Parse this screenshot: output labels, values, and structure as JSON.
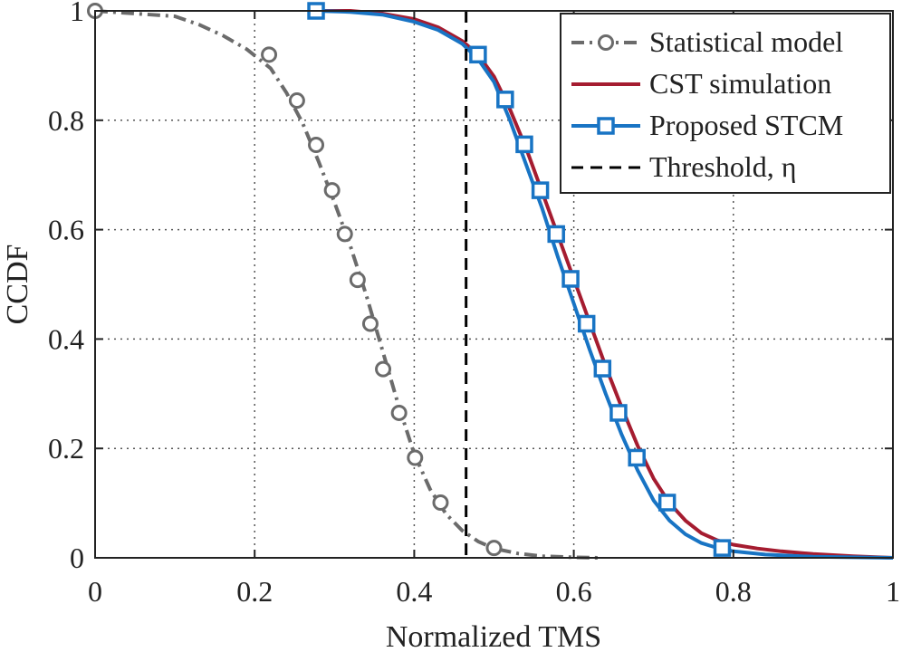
{
  "chart_data": {
    "type": "line",
    "xlabel": "Normalized TMS",
    "ylabel": "CCDF",
    "xlim": [
      0,
      1
    ],
    "ylim": [
      0,
      1
    ],
    "xticks": [
      "0",
      "0.2",
      "0.4",
      "0.6",
      "0.8",
      "1"
    ],
    "yticks": [
      "0",
      "0.2",
      "0.4",
      "0.6",
      "0.8",
      "1"
    ],
    "grid": true,
    "legend_position": "top-right",
    "threshold": {
      "name": "Threshold, η",
      "x": 0.465,
      "color": "#000000",
      "style": "dashed"
    },
    "series": [
      {
        "name": "Statistical model",
        "color": "#6b6b6b",
        "line_style": "dash-dot",
        "marker": "circle",
        "x": [
          0,
          0.05,
          0.1,
          0.13,
          0.16,
          0.19,
          0.22,
          0.24,
          0.26,
          0.28,
          0.3,
          0.32,
          0.34,
          0.36,
          0.38,
          0.4,
          0.42,
          0.44,
          0.46,
          0.48,
          0.5,
          0.53,
          0.56,
          0.6,
          0.63
        ],
        "y": [
          1.0,
          0.995,
          0.99,
          0.975,
          0.955,
          0.93,
          0.895,
          0.85,
          0.795,
          0.725,
          0.65,
          0.57,
          0.48,
          0.38,
          0.28,
          0.19,
          0.125,
          0.08,
          0.05,
          0.03,
          0.017,
          0.008,
          0.003,
          0.001,
          0.0
        ],
        "marker_points": {
          "x": [
            0.0,
            0.218,
            0.253,
            0.277,
            0.297,
            0.313,
            0.329,
            0.345,
            0.361,
            0.381,
            0.401,
            0.433,
            0.5
          ],
          "y": [
            1.0,
            0.92,
            0.836,
            0.755,
            0.672,
            0.592,
            0.508,
            0.428,
            0.345,
            0.265,
            0.183,
            0.101,
            0.018
          ]
        }
      },
      {
        "name": "CST simulation",
        "color": "#a51c30",
        "line_style": "solid",
        "marker": "none",
        "x": [
          0.277,
          0.32,
          0.36,
          0.4,
          0.43,
          0.46,
          0.48,
          0.5,
          0.52,
          0.54,
          0.56,
          0.58,
          0.6,
          0.62,
          0.64,
          0.66,
          0.68,
          0.7,
          0.72,
          0.74,
          0.76,
          0.78,
          0.8,
          0.83,
          0.86,
          0.9,
          0.95,
          1.0
        ],
        "y": [
          1.0,
          1.0,
          0.995,
          0.985,
          0.97,
          0.945,
          0.92,
          0.88,
          0.82,
          0.75,
          0.67,
          0.59,
          0.51,
          0.43,
          0.35,
          0.275,
          0.205,
          0.145,
          0.1,
          0.068,
          0.045,
          0.032,
          0.024,
          0.017,
          0.012,
          0.007,
          0.003,
          0.0
        ]
      },
      {
        "name": "Proposed STCM",
        "color": "#1874c4",
        "line_style": "solid",
        "marker": "square",
        "x": [
          0.277,
          0.32,
          0.36,
          0.4,
          0.43,
          0.46,
          0.48,
          0.5,
          0.52,
          0.54,
          0.56,
          0.58,
          0.6,
          0.62,
          0.64,
          0.66,
          0.68,
          0.7,
          0.72,
          0.74,
          0.76,
          0.78,
          0.8,
          0.84,
          0.9,
          1.0
        ],
        "y": [
          1.0,
          0.998,
          0.993,
          0.98,
          0.965,
          0.94,
          0.912,
          0.87,
          0.8,
          0.72,
          0.64,
          0.55,
          0.465,
          0.38,
          0.3,
          0.225,
          0.16,
          0.105,
          0.068,
          0.043,
          0.027,
          0.018,
          0.012,
          0.006,
          0.002,
          0.0
        ],
        "marker_points": {
          "x": [
            0.277,
            0.48,
            0.514,
            0.538,
            0.558,
            0.578,
            0.596,
            0.616,
            0.636,
            0.656,
            0.679,
            0.717,
            0.786
          ],
          "y": [
            1.0,
            0.92,
            0.838,
            0.756,
            0.672,
            0.592,
            0.51,
            0.428,
            0.346,
            0.265,
            0.183,
            0.101,
            0.018
          ]
        }
      }
    ]
  }
}
